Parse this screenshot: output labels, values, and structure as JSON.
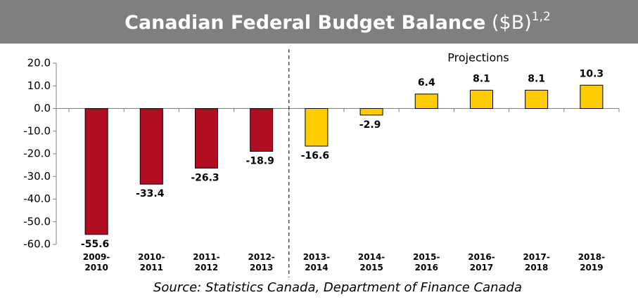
{
  "chart_data": {
    "type": "bar",
    "title": "Canadian Federal Budget Balance",
    "title_unit": "($B)",
    "title_superscript": "1,2",
    "categories": [
      "2009-2010",
      "2010-2011",
      "2011-2012",
      "2012-2013",
      "2013-2014",
      "2014-2015",
      "2015-2016",
      "2016-2017",
      "2017-2018",
      "2018-2019"
    ],
    "values": [
      -55.6,
      -33.4,
      -26.3,
      -18.9,
      -16.6,
      -2.9,
      6.4,
      8.1,
      8.1,
      10.3
    ],
    "colors": [
      "#b00d23",
      "#b00d23",
      "#b00d23",
      "#b00d23",
      "#ffcc00",
      "#ffcc00",
      "#ffcc00",
      "#ffcc00",
      "#ffcc00",
      "#ffcc00"
    ],
    "annotation": "Projections",
    "ylim": [
      -60,
      20
    ],
    "yticks": [
      {
        "value": -60,
        "label": "-60.0"
      },
      {
        "value": -50,
        "label": "-50.0"
      },
      {
        "value": -40,
        "label": "-40.0"
      },
      {
        "value": -30,
        "label": "-30.0"
      },
      {
        "value": -20,
        "label": "-20.0"
      },
      {
        "value": -10,
        "label": "-10.0"
      },
      {
        "value": 0,
        "label": "0.0"
      },
      {
        "value": 10,
        "label": "10.0"
      },
      {
        "value": 20,
        "label": "20.0"
      }
    ],
    "grid": false,
    "source": "Source: Statistics Canada, Department of Finance Canada"
  }
}
